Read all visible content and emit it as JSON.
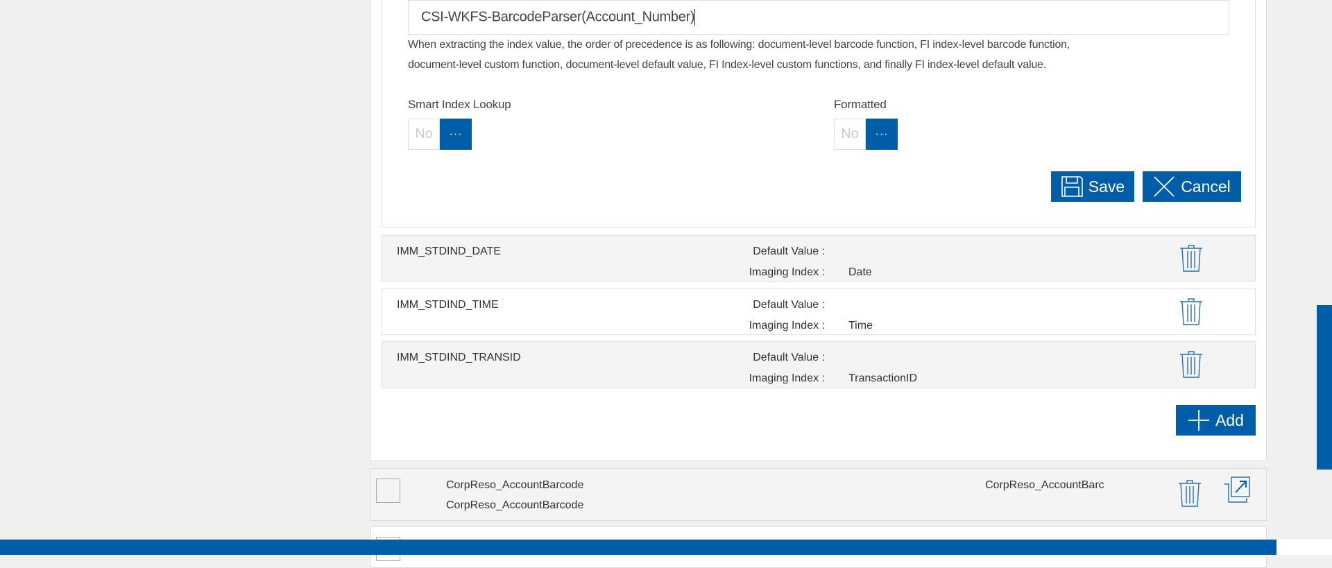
{
  "editor": {
    "function_value": "CSI-WKFS-BarcodeParser(Account_Number)",
    "help_text_line1": "When extracting the index value, the order of precedence is as following: document-level barcode function, FI index-level barcode function,",
    "help_text_line2": "document-level custom function, document-level default value, FI Index-level custom functions, and finally FI index-level default value.",
    "smart_index_lookup": {
      "label": "Smart Index Lookup",
      "value": "No",
      "more": "···"
    },
    "formatted": {
      "label": "Formatted",
      "value": "No",
      "more": "···"
    },
    "save_label": "Save",
    "cancel_label": "Cancel"
  },
  "index_rows": [
    {
      "name": "IMM_STDIND_DATE",
      "default_label": "Default Value :",
      "default_value": "",
      "imaging_label": "Imaging Index :",
      "imaging_value": "Date"
    },
    {
      "name": "IMM_STDIND_TIME",
      "default_label": "Default Value :",
      "default_value": "",
      "imaging_label": "Imaging Index :",
      "imaging_value": "Time"
    },
    {
      "name": "IMM_STDIND_TRANSID",
      "default_label": "Default Value :",
      "default_value": "",
      "imaging_label": "Imaging Index :",
      "imaging_value": "TransactionID"
    }
  ],
  "add_label": "Add",
  "documents": [
    {
      "line1": "CorpReso_AccountBarcode",
      "line2": "CorpReso_AccountBarcode",
      "right": "CorpReso_AccountBarc"
    }
  ],
  "colors": {
    "accent": "#005ea8",
    "row_bg": "#f4f4f4",
    "page_bg": "#f0f0f0"
  }
}
